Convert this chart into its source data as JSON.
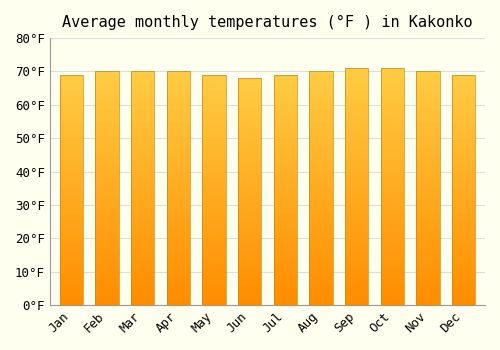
{
  "title": "Average monthly temperatures (°F ) in Kakonko",
  "months": [
    "Jan",
    "Feb",
    "Mar",
    "Apr",
    "May",
    "Jun",
    "Jul",
    "Aug",
    "Sep",
    "Oct",
    "Nov",
    "Dec"
  ],
  "values": [
    69,
    70,
    70,
    70,
    69,
    68,
    69,
    70,
    71,
    71,
    70,
    69
  ],
  "bar_color_bottom": "#FF8C00",
  "bar_color_top": "#FFCC44",
  "bar_edge_color": "#CC8800",
  "ylim": [
    0,
    80
  ],
  "yticks": [
    0,
    10,
    20,
    30,
    40,
    50,
    60,
    70,
    80
  ],
  "ytick_labels": [
    "0°F",
    "10°F",
    "20°F",
    "30°F",
    "40°F",
    "50°F",
    "60°F",
    "70°F",
    "80°F"
  ],
  "background_color": "#FFFFF0",
  "grid_color": "#DDDDDD",
  "title_fontsize": 11,
  "tick_fontsize": 9,
  "bar_width": 0.65,
  "n_segments": 100
}
